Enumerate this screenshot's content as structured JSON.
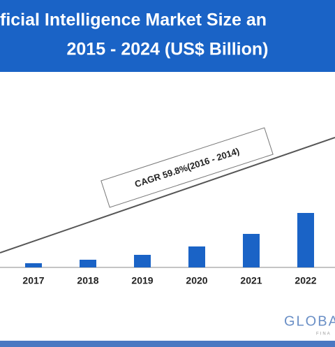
{
  "chart_data": {
    "type": "bar",
    "title": [
      "ficial Intelligence Market Size an",
      "2015 - 2024 (US$ Billion)"
    ],
    "categories": [
      "2017",
      "2018",
      "2019",
      "2020",
      "2021",
      "2022"
    ],
    "values": [
      6,
      11,
      18,
      30,
      48,
      78
    ],
    "color": "#1a63c6",
    "ylim": [
      0,
      100
    ],
    "annotation": "CAGR 59.8%(2016 - 2014)",
    "logo": [
      "GLOBA",
      "FINA"
    ]
  }
}
